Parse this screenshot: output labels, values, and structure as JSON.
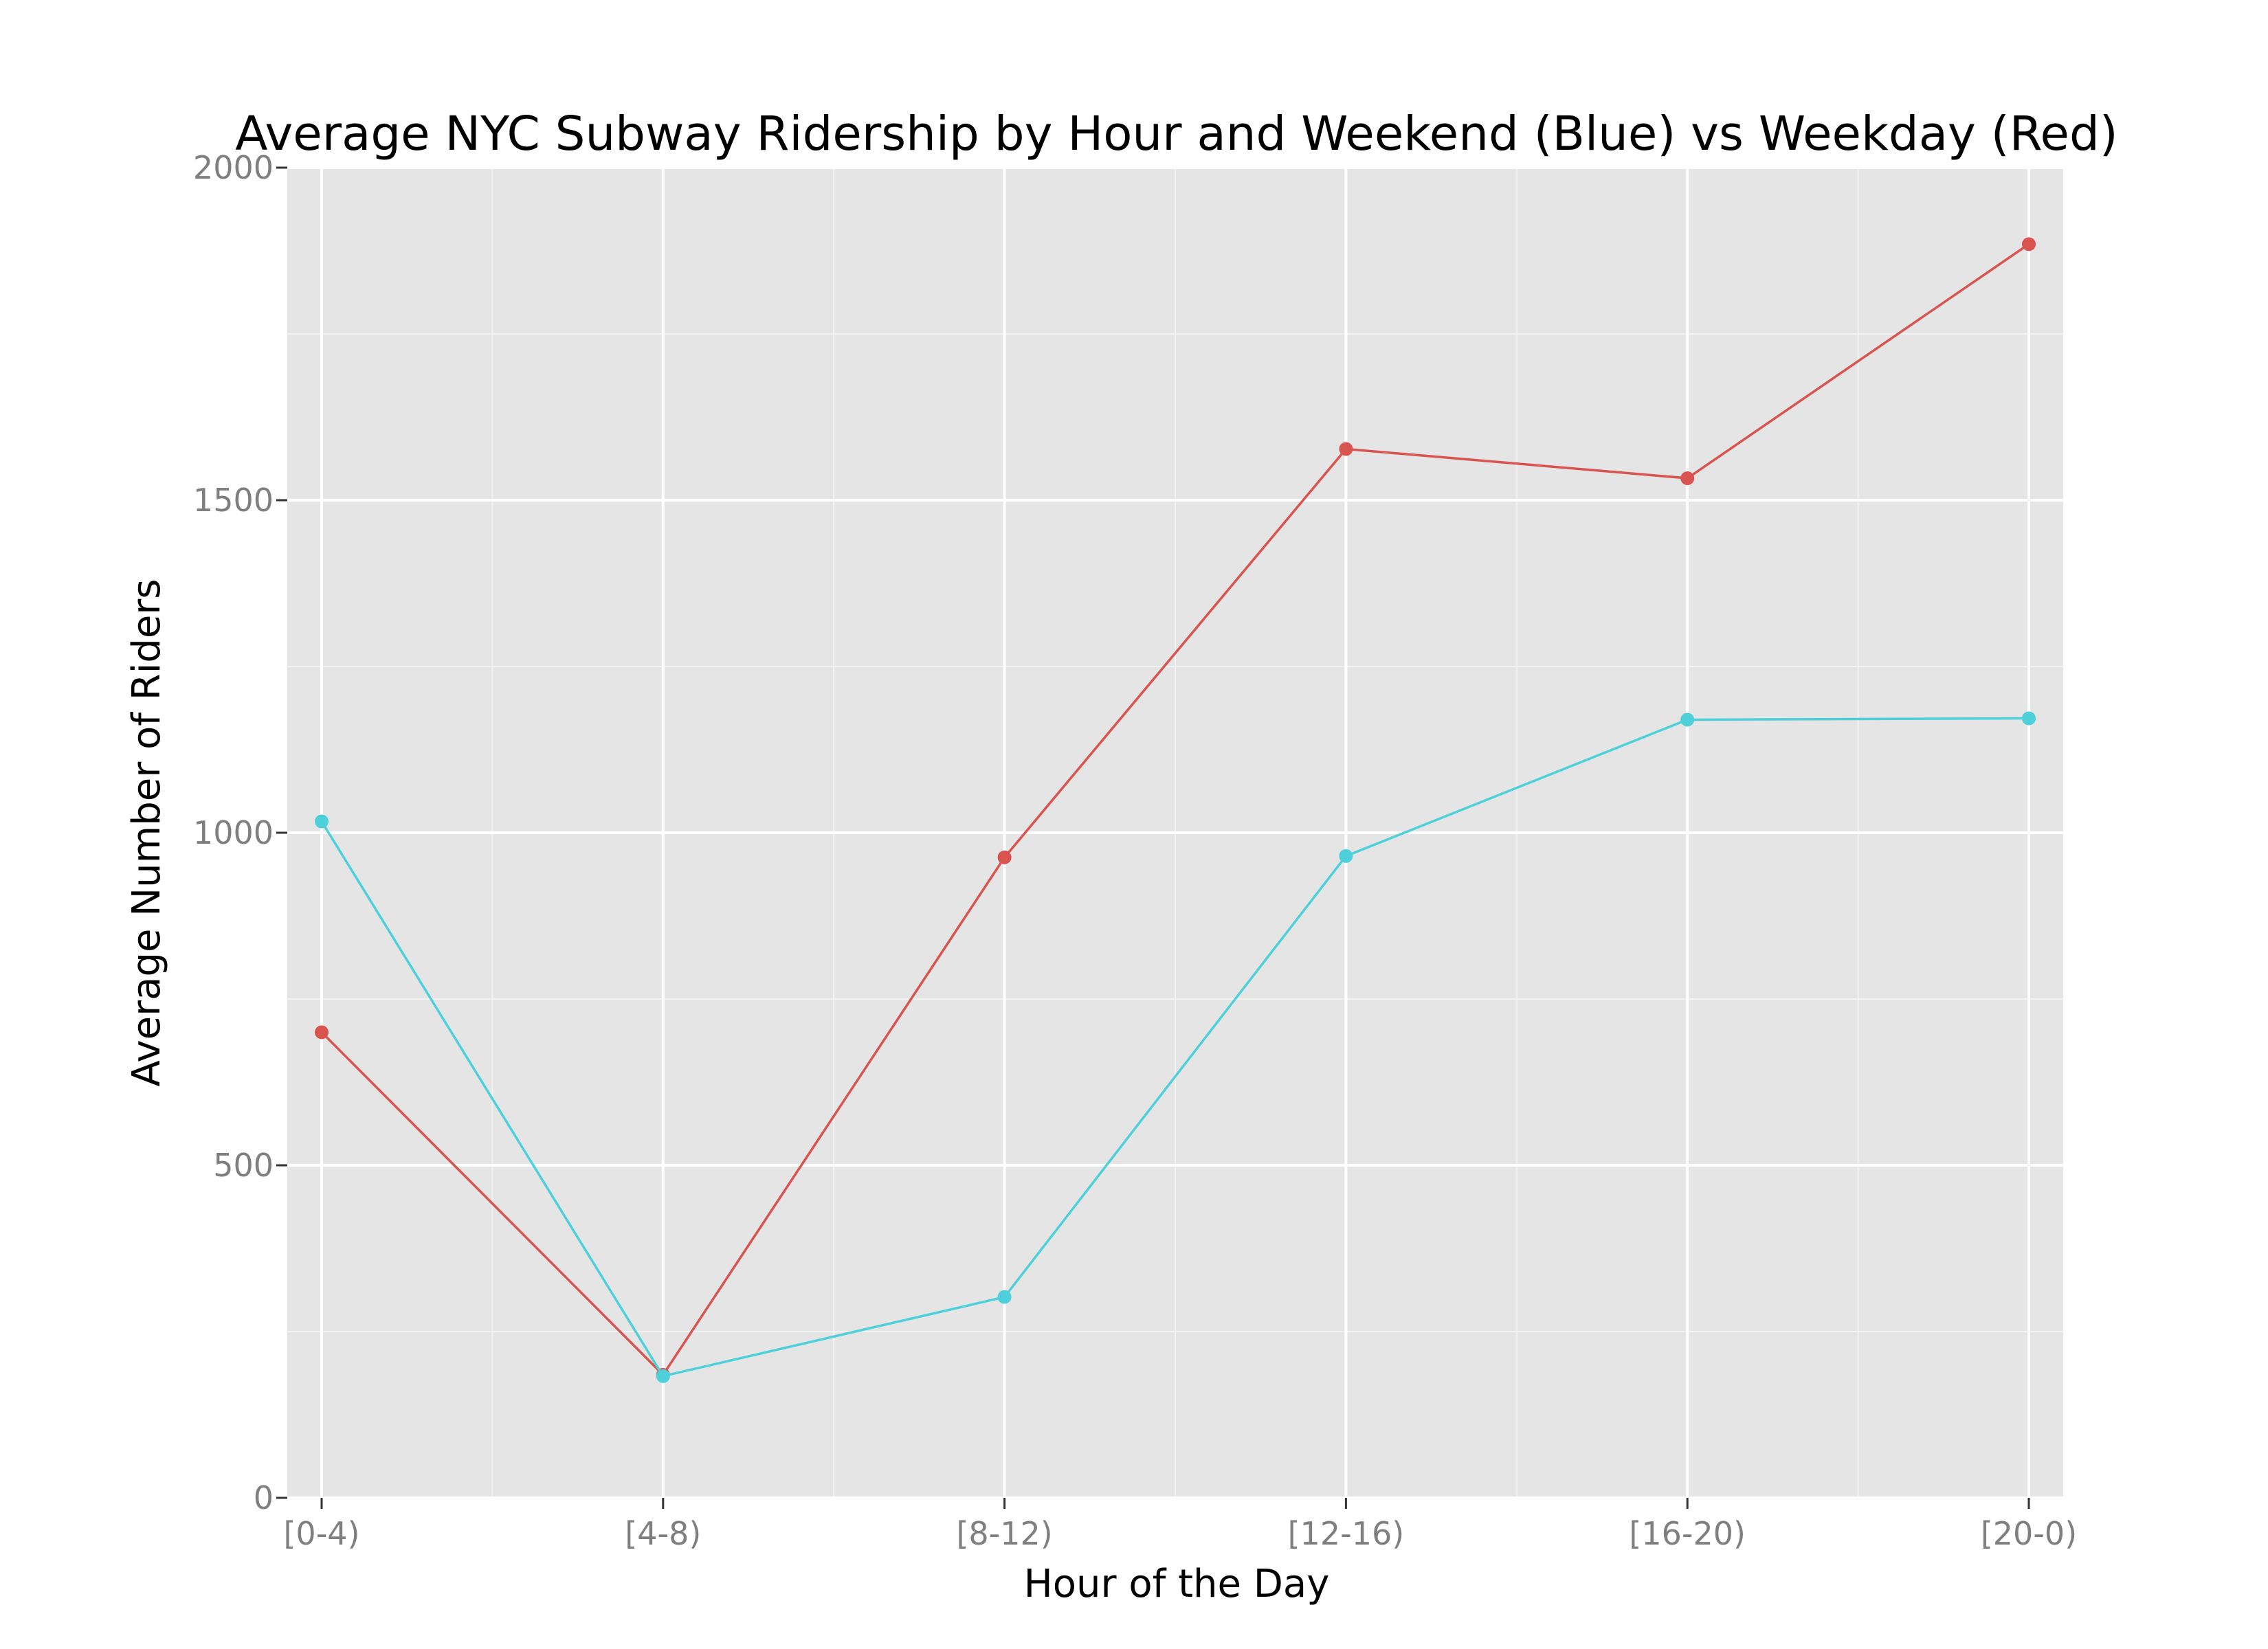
{
  "chart_data": {
    "type": "line",
    "title": "Average NYC Subway Ridership by Hour and Weekend (Blue) vs Weekday (Red)",
    "xlabel": "Hour of the Day",
    "ylabel": "Average Number of Riders",
    "categories": [
      "[0-4)",
      "[4-8)",
      "[8-12)",
      "[12-16)",
      "[16-20)",
      "[20-0)"
    ],
    "ylim": [
      0,
      2000
    ],
    "yticks": [
      0,
      500,
      1000,
      1500,
      2000
    ],
    "grid": true,
    "legend": "none",
    "colors": {
      "panel_background": "#e5e5e5",
      "grid_major": "#ffffff",
      "grid_minor": "#f2f2f2",
      "tick_text": "#7f7f7f"
    },
    "series": [
      {
        "color": "#d9534f",
        "values": [
          700,
          185,
          963,
          1577,
          1533,
          1885
        ]
      },
      {
        "color": "#4dd0da",
        "values": [
          1017,
          183,
          302,
          965,
          1170,
          1172
        ]
      }
    ]
  }
}
